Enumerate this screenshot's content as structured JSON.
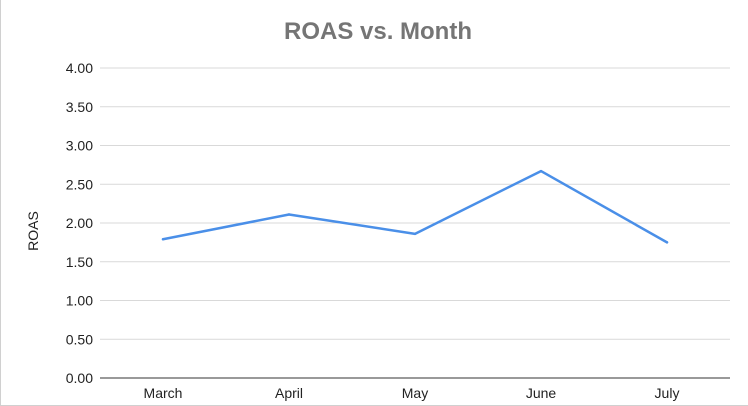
{
  "chart_data": {
    "type": "line",
    "title": "ROAS vs. Month",
    "xlabel": "",
    "ylabel": "ROAS",
    "categories": [
      "March",
      "April",
      "May",
      "June",
      "July"
    ],
    "series": [
      {
        "values": [
          1.79,
          2.11,
          1.86,
          2.67,
          1.75
        ]
      }
    ],
    "ylim": [
      0,
      4
    ],
    "yticks": [
      "0.00",
      "0.50",
      "1.00",
      "1.50",
      "2.00",
      "2.50",
      "3.00",
      "3.50",
      "4.00"
    ],
    "grid": true,
    "legend": "none",
    "line_color": "#4a8fe8"
  }
}
